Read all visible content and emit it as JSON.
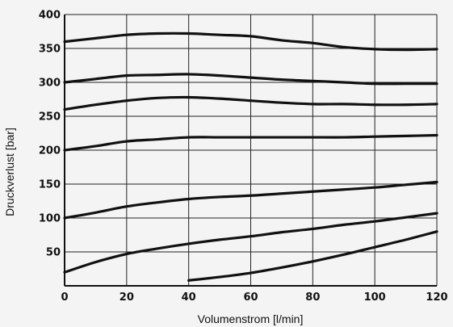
{
  "chart_data": {
    "type": "line",
    "xlabel": "Volumenstrom [l/min]",
    "ylabel": "Druckverlust [bar]",
    "xlim": [
      0,
      120
    ],
    "ylim": [
      0,
      400
    ],
    "xticks": [
      0,
      20,
      40,
      60,
      80,
      100,
      120
    ],
    "yticks": [
      50,
      100,
      150,
      200,
      250,
      300,
      350,
      400
    ],
    "grid": true,
    "series": [
      {
        "x": [
          0,
          10,
          20,
          30,
          40,
          50,
          60,
          70,
          80,
          90,
          100,
          110,
          120
        ],
        "values": [
          360,
          365,
          370,
          372,
          372,
          370,
          368,
          362,
          358,
          352,
          349,
          348,
          349
        ]
      },
      {
        "x": [
          0,
          10,
          20,
          30,
          40,
          50,
          60,
          70,
          80,
          90,
          100,
          110,
          120
        ],
        "values": [
          300,
          305,
          310,
          311,
          312,
          310,
          307,
          304,
          302,
          300,
          298,
          298,
          298
        ]
      },
      {
        "x": [
          0,
          10,
          20,
          30,
          40,
          50,
          60,
          70,
          80,
          90,
          100,
          110,
          120
        ],
        "values": [
          260,
          267,
          273,
          277,
          278,
          276,
          273,
          270,
          268,
          268,
          267,
          267,
          268
        ]
      },
      {
        "x": [
          0,
          10,
          20,
          30,
          40,
          50,
          60,
          70,
          80,
          90,
          100,
          110,
          120
        ],
        "values": [
          200,
          206,
          213,
          216,
          219,
          219,
          219,
          219,
          219,
          219,
          220,
          221,
          222
        ]
      },
      {
        "x": [
          0,
          10,
          20,
          30,
          40,
          50,
          60,
          70,
          80,
          90,
          100,
          110,
          120
        ],
        "values": [
          100,
          108,
          117,
          123,
          128,
          131,
          133,
          136,
          139,
          142,
          145,
          149,
          153
        ]
      },
      {
        "x": [
          0,
          10,
          20,
          30,
          40,
          50,
          60,
          70,
          80,
          90,
          100,
          110,
          120
        ],
        "values": [
          20,
          35,
          47,
          55,
          62,
          68,
          73,
          79,
          84,
          90,
          95,
          101,
          107
        ]
      },
      {
        "x": [
          40,
          50,
          60,
          70,
          80,
          90,
          100,
          110,
          120
        ],
        "values": [
          8,
          13,
          19,
          27,
          36,
          46,
          57,
          68,
          80
        ]
      }
    ]
  }
}
